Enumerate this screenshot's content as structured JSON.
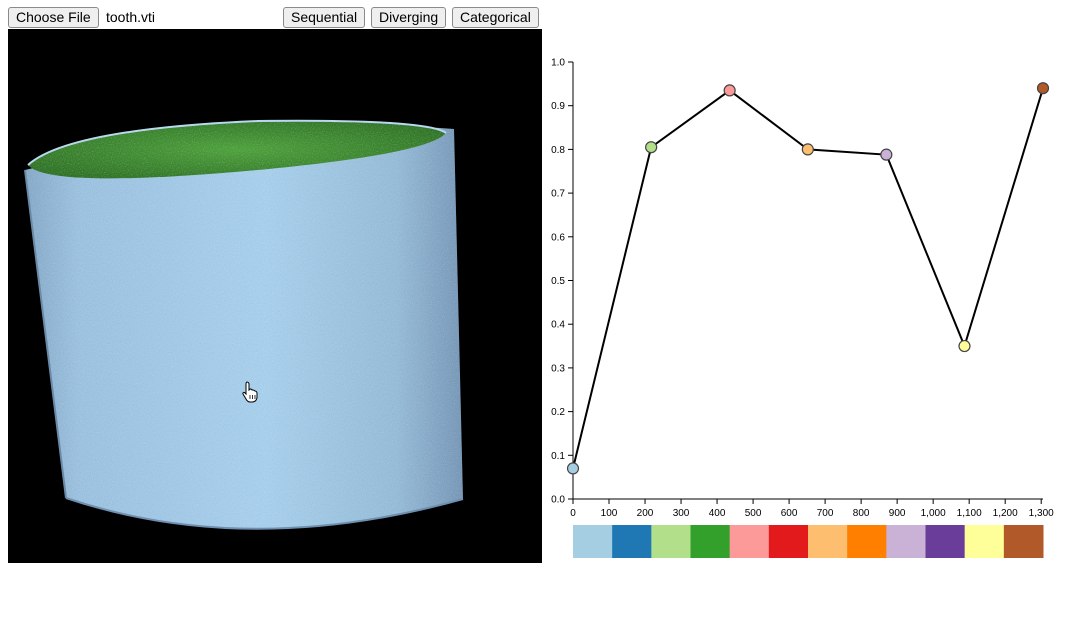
{
  "toolbar": {
    "choose_file_label": "Choose File",
    "file_name": "tooth.vti",
    "sequential_label": "Sequential",
    "diverging_label": "Diverging",
    "categorical_label": "Categorical"
  },
  "viewer": {
    "colors": {
      "background": "#000000",
      "cylinder": "#9ec6e4",
      "inner": "#3f8d32"
    },
    "cursor_icon": "hand-pointer-icon"
  },
  "chart_data": {
    "type": "line",
    "x": [
      0,
      217,
      435,
      652,
      870,
      1087,
      1305
    ],
    "y": [
      0.07,
      0.805,
      0.935,
      0.8,
      0.788,
      0.35,
      0.94
    ],
    "point_colors": [
      "#a6cee3",
      "#b2df8a",
      "#fb9a99",
      "#fdbf6f",
      "#cab2d6",
      "#ffff99",
      "#b15928"
    ],
    "xlim": [
      0,
      1305
    ],
    "ylim": [
      0,
      1.0
    ],
    "x_ticks": [
      0,
      100,
      200,
      300,
      400,
      500,
      600,
      700,
      800,
      900,
      1000,
      1100,
      1200,
      1300
    ],
    "x_tick_labels": [
      "0",
      "100",
      "200",
      "300",
      "400",
      "500",
      "600",
      "700",
      "800",
      "900",
      "1,000",
      "1,100",
      "1,200",
      "1,300"
    ],
    "y_ticks": [
      0,
      0.1,
      0.2,
      0.3,
      0.4,
      0.5,
      0.6,
      0.7,
      0.8,
      0.9,
      1.0
    ],
    "y_tick_labels": [
      "0.0",
      "0.1",
      "0.2",
      "0.3",
      "0.4",
      "0.5",
      "0.6",
      "0.7",
      "0.8",
      "0.9",
      "1.0"
    ],
    "colormap": [
      "#a6cee3",
      "#1f78b4",
      "#b2df8a",
      "#33a02c",
      "#fb9a99",
      "#e31a1c",
      "#fdbf6f",
      "#ff7f00",
      "#cab2d6",
      "#6a3d9a",
      "#ffff99",
      "#b15928"
    ],
    "grid": false,
    "xlabel": "",
    "ylabel": ""
  }
}
